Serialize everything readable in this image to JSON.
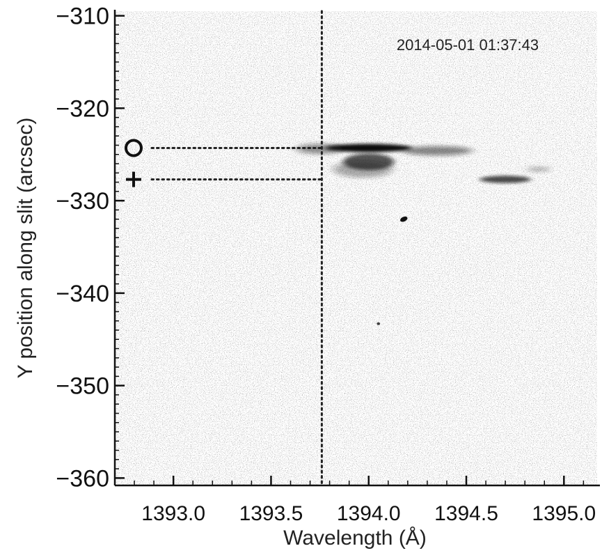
{
  "chart_data": {
    "type": "heatmap",
    "title": "",
    "annotation": "2014-05-01 01:37:43",
    "xlabel": "Wavelength (Å)",
    "ylabel": "Y position along slit (arcsec)",
    "xlim": [
      1392.7,
      1395.17
    ],
    "ylim": [
      -360.8,
      -309.5
    ],
    "x_ticks": [
      1393.0,
      1393.5,
      1394.0,
      1394.5,
      1395.0
    ],
    "x_tick_labels": [
      "1393.0",
      "1393.5",
      "1394.0",
      "1394.5",
      "1395.0"
    ],
    "y_ticks": [
      -310,
      -320,
      -330,
      -340,
      -350,
      -360
    ],
    "y_tick_labels": [
      "−310",
      "−320",
      "−330",
      "−340",
      "−350",
      "−360"
    ],
    "grid": false,
    "colormap": "inverted grayscale",
    "reference_lines": {
      "vertical_wavelength": 1393.76,
      "horizontal": [
        {
          "y": -324.3,
          "marker": "circle"
        },
        {
          "y": -327.7,
          "marker": "plus"
        }
      ]
    },
    "markers": [
      {
        "label": "O",
        "symbol": "circle",
        "y": -324.3
      },
      {
        "label": "+",
        "symbol": "plus",
        "y": -327.7
      }
    ],
    "features": [
      {
        "name": "main emission streak",
        "x_center": 1394.0,
        "y_center": -324.3,
        "x_halfwidth": 0.22,
        "y_halfwidth": 0.45,
        "intensity": 1.0
      },
      {
        "name": "streak red wing",
        "x_center": 1394.35,
        "y_center": -324.6,
        "x_halfwidth": 0.18,
        "y_halfwidth": 0.5,
        "intensity": 0.5
      },
      {
        "name": "streak blue wing",
        "x_center": 1393.75,
        "y_center": -324.4,
        "x_halfwidth": 0.12,
        "y_halfwidth": 0.55,
        "intensity": 0.45
      },
      {
        "name": "lower blob",
        "x_center": 1394.0,
        "y_center": -325.8,
        "x_halfwidth": 0.13,
        "y_halfwidth": 0.9,
        "intensity": 0.7
      },
      {
        "name": "lower diffuse emission",
        "x_center": 1393.97,
        "y_center": -326.6,
        "x_halfwidth": 0.15,
        "y_halfwidth": 0.9,
        "intensity": 0.35
      },
      {
        "name": "red-shifted blob",
        "x_center": 1394.7,
        "y_center": -327.7,
        "x_halfwidth": 0.13,
        "y_halfwidth": 0.4,
        "intensity": 0.75
      },
      {
        "name": "red-shifted faint tail",
        "x_center": 1394.87,
        "y_center": -326.6,
        "x_halfwidth": 0.06,
        "y_halfwidth": 0.3,
        "intensity": 0.25
      },
      {
        "name": "dark spot",
        "x_center": 1394.18,
        "y_center": -332.0,
        "x_halfwidth": 0.02,
        "y_halfwidth": 0.25,
        "intensity": 1.0
      },
      {
        "name": "small speck",
        "x_center": 1394.05,
        "y_center": -343.3,
        "x_halfwidth": 0.008,
        "y_halfwidth": 0.15,
        "intensity": 0.8
      }
    ],
    "colors": {
      "axis": "#111111",
      "background_noise": "#cfcfcf",
      "emission": "#101010",
      "guide_line": "#222222"
    }
  }
}
